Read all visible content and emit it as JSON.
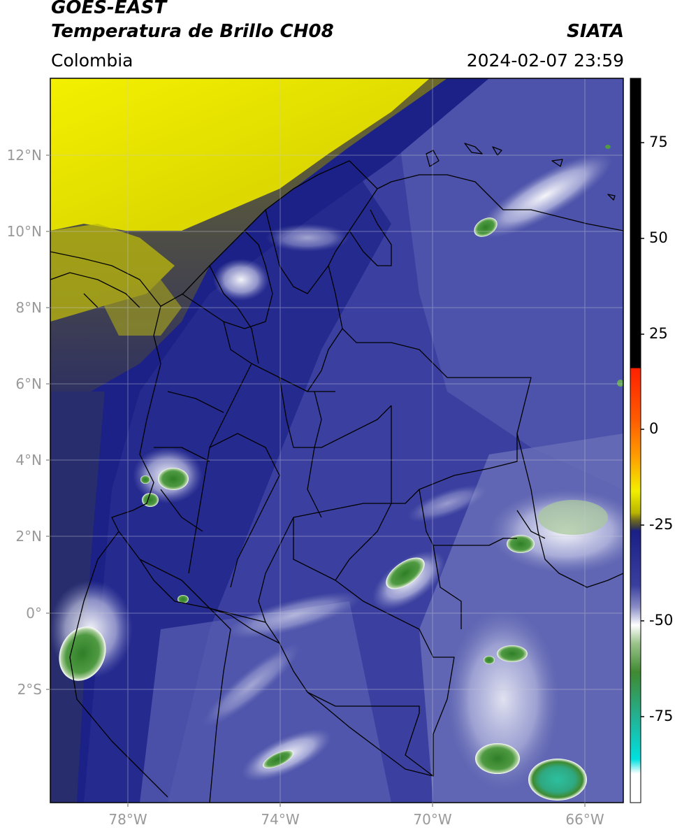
{
  "header": {
    "satellite": "GOES-EAST",
    "product": "Temperatura de Brillo CH08",
    "brand": "SIATA",
    "region": "Colombia",
    "timestamp": "2024-02-07 23:59"
  },
  "map": {
    "lat_ticks": [
      "12°N",
      "10°N",
      "8°N",
      "6°N",
      "4°N",
      "2°N",
      "0°",
      "2°S"
    ],
    "lon_ticks": [
      "78°W",
      "74°W",
      "70°W",
      "66°W"
    ]
  },
  "colorbar": {
    "ticks": [
      "75",
      "50",
      "25",
      "0",
      "-25",
      "-50",
      "-75"
    ],
    "colors": {
      "black": "#000000",
      "red": "#ff2000",
      "orange": "#ff9a00",
      "yellow": "#f2ef00",
      "olive": "#6f6a20",
      "navy": "#1a1f86",
      "blue": "#5a60b0",
      "lavender": "#b8badc",
      "white": "#ffffff",
      "green": "#3f8a30",
      "teal": "#24b090",
      "cyan": "#00e0e0"
    }
  },
  "imagery_colors": {
    "cold_dry_yellow": "#ece800",
    "dark_navy": "#1d2388",
    "mid_blue": "#3a3f9e",
    "light_blue": "#6d72b8",
    "white_cloud": "#e4e6f2",
    "green_cloud": "#4f9a42",
    "teal_cloud": "#30b08a",
    "border": "#000000"
  }
}
